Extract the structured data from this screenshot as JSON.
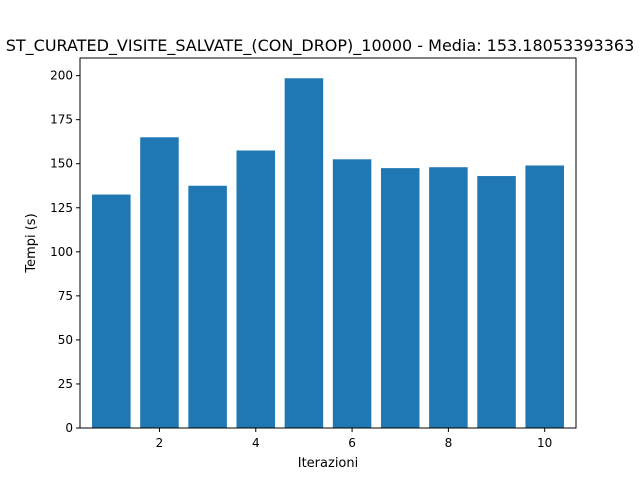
{
  "chart_data": {
    "type": "bar",
    "title": "ST_CURATED_VISITE_SALVATE_(CON_DROP)_10000 - Media: 153.18053393363",
    "xlabel": "Iterazioni",
    "ylabel": "Tempi (s)",
    "x": [
      1,
      2,
      3,
      4,
      5,
      6,
      7,
      8,
      9,
      10
    ],
    "values": [
      132.5,
      165.0,
      137.5,
      157.5,
      198.5,
      152.5,
      147.5,
      148.0,
      143.0,
      149.0
    ],
    "xlim": [
      0.35,
      10.65
    ],
    "ylim": [
      0,
      210
    ],
    "x_ticks": [
      2,
      4,
      6,
      8,
      10
    ],
    "y_ticks": [
      0,
      25,
      50,
      75,
      100,
      125,
      150,
      175,
      200
    ],
    "bar_color": "#1f77b4",
    "grid": false,
    "legend": "none"
  }
}
